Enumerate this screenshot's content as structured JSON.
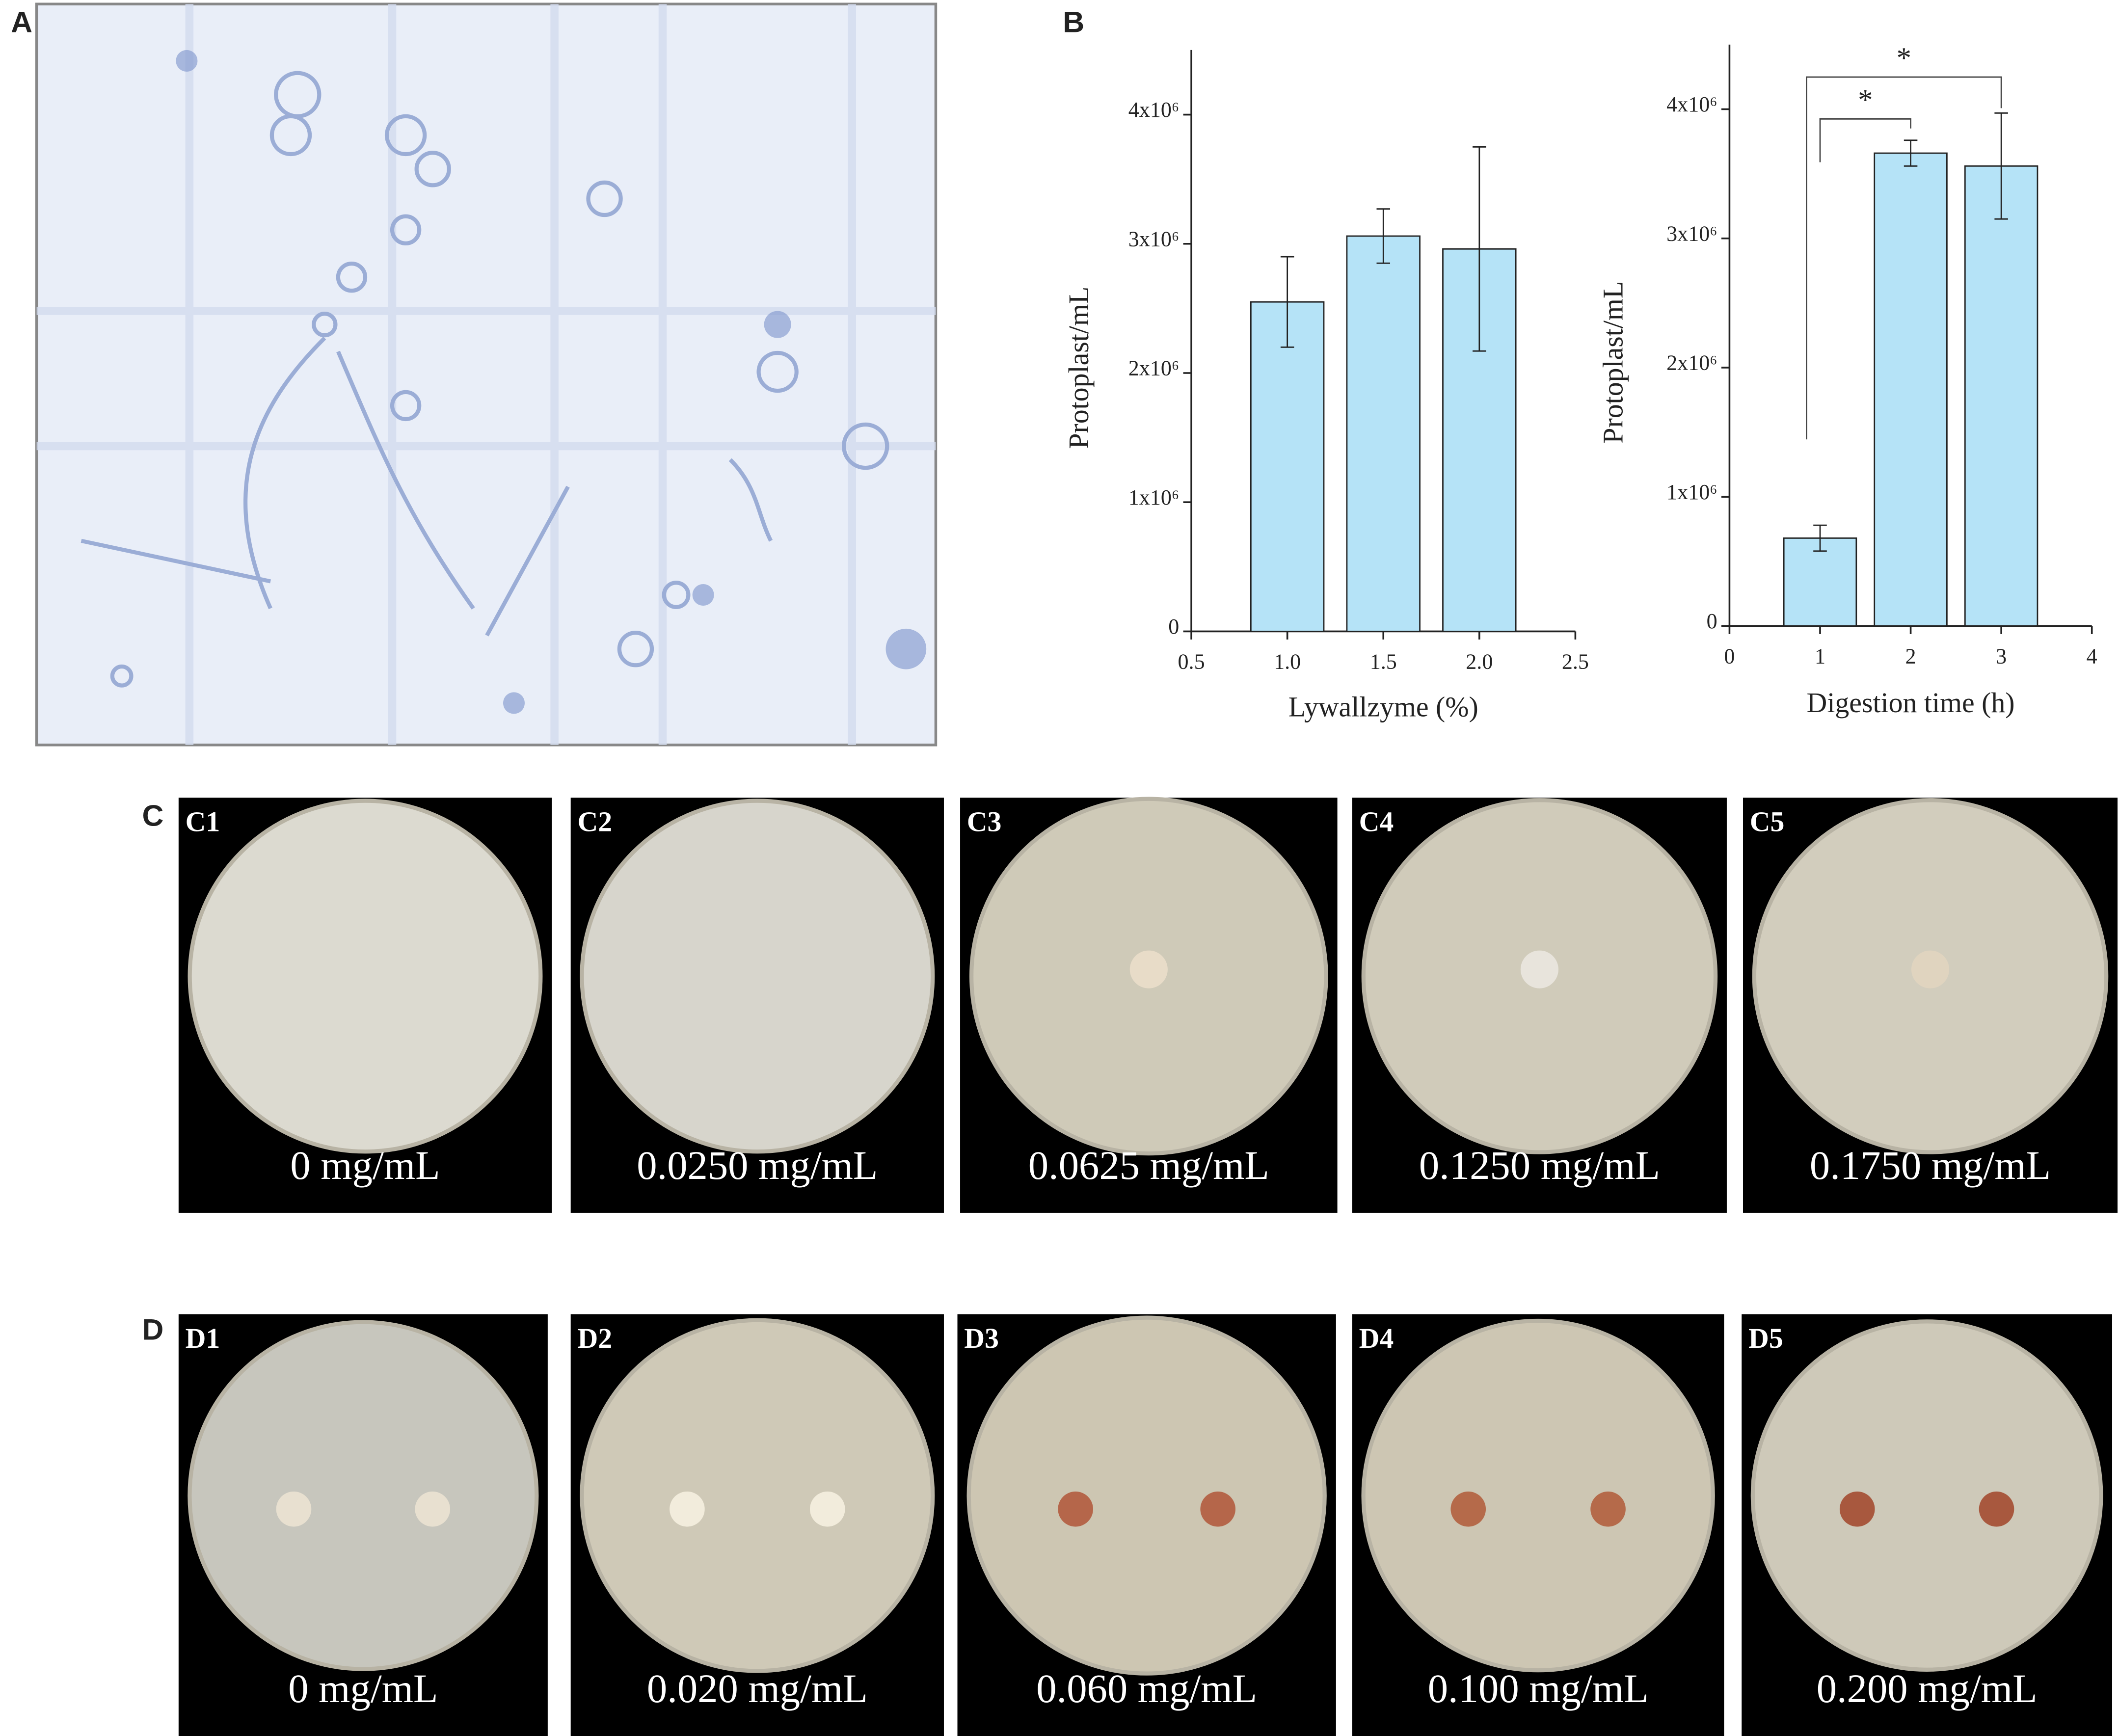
{
  "panel_labels": [
    "A",
    "B",
    "C",
    "D"
  ],
  "chart_data": [
    {
      "type": "bar",
      "x": [
        1.0,
        1.5,
        2.0
      ],
      "values": [
        2550000,
        3060000,
        2960000
      ],
      "errors": [
        350000,
        210000,
        790000
      ],
      "color": "#b5e3f7",
      "xlabel": "Lywallzyme (%)",
      "ylabel": "Protoplast/mL",
      "xlim": [
        0.5,
        2.5
      ],
      "xticks": [
        0.5,
        {
          "value": 1,
          "label": "1.0"
        },
        1.5,
        {
          "value": 2,
          "label": "2.0"
        },
        2.5
      ],
      "ylim": [
        0,
        4500000
      ],
      "yticks": [
        0,
        {
          "value": 1000000,
          "label": "1x10⁶"
        },
        {
          "value": 2000000,
          "label": "2x10⁶"
        },
        {
          "value": 3000000,
          "label": "3x10⁶"
        },
        {
          "value": 4000000,
          "label": "4x10⁶"
        }
      ]
    },
    {
      "type": "bar",
      "x": [
        1,
        2,
        3
      ],
      "values": [
        680000,
        3660000,
        3560000
      ],
      "errors": [
        100000,
        100000,
        410000
      ],
      "color": "#b5e3f7",
      "xlabel": "Digestion time (h)",
      "ylabel": "Protoplast/mL",
      "xlim": [
        0,
        4
      ],
      "xticks": [
        0,
        1,
        2,
        3,
        4
      ],
      "ylim": [
        0,
        4500000
      ],
      "yticks": [
        0,
        {
          "value": 1000000,
          "label": "1x10⁶"
        },
        {
          "value": 2000000,
          "label": "2x10⁶"
        },
        {
          "value": 3000000,
          "label": "3x10⁶"
        },
        {
          "value": 4000000,
          "label": "4x10⁶"
        }
      ],
      "annotations": [
        "*",
        "*"
      ]
    }
  ],
  "plates_c": [
    {
      "label": "C1",
      "caption": "0 mg/mL"
    },
    {
      "label": "C2",
      "caption": "0.0250 mg/mL"
    },
    {
      "label": "C3",
      "caption": "0.0625 mg/mL"
    },
    {
      "label": "C4",
      "caption": "0.1250 mg/mL"
    },
    {
      "label": "C5",
      "caption": "0.1750 mg/mL"
    }
  ],
  "plates_d": [
    {
      "label": "D1",
      "caption": "0 mg/mL"
    },
    {
      "label": "D2",
      "caption": "0.020 mg/mL"
    },
    {
      "label": "D3",
      "caption": "0.060 mg/mL"
    },
    {
      "label": "D4",
      "caption": "0.100 mg/mL"
    },
    {
      "label": "D5",
      "caption": "0.200 mg/mL"
    }
  ]
}
